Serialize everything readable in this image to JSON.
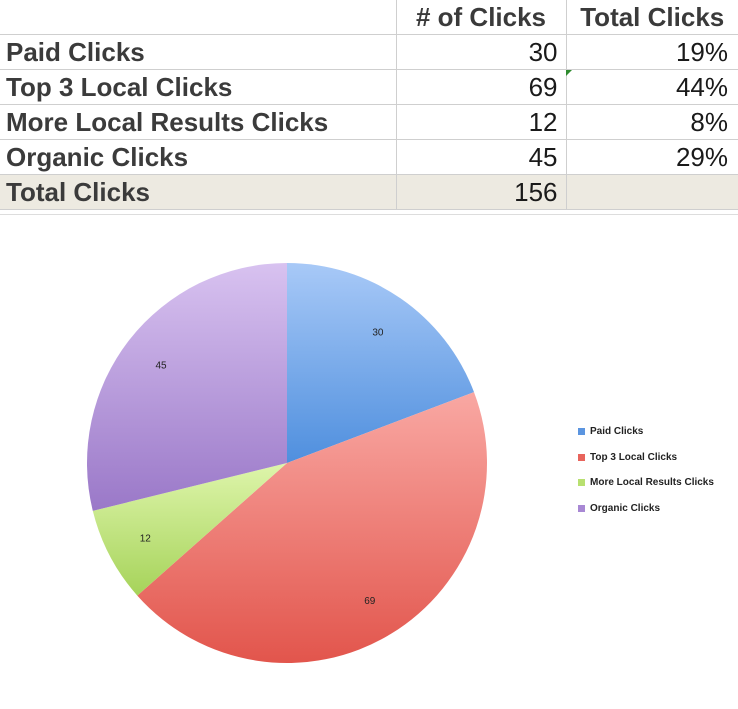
{
  "table": {
    "headers": [
      "",
      "# of Clicks",
      "Total Clicks"
    ],
    "rows": [
      {
        "label": "Paid Clicks",
        "count": "30",
        "pct": "19%"
      },
      {
        "label": "Top 3 Local Clicks",
        "count": "69",
        "pct": "44%"
      },
      {
        "label": "More Local Results Clicks",
        "count": "12",
        "pct": "8%"
      },
      {
        "label": "Organic Clicks",
        "count": "45",
        "pct": "29%"
      }
    ],
    "total": {
      "label": "Total Clicks",
      "count": "156",
      "pct": ""
    }
  },
  "chart_data": {
    "type": "pie",
    "title": "",
    "legend_position": "right",
    "categories": [
      "Paid Clicks",
      "Top 3 Local Clicks",
      "More Local Results Clicks",
      "Organic Clicks"
    ],
    "values": [
      30,
      69,
      12,
      45
    ],
    "data_labels": [
      "30",
      "69",
      "12",
      "45"
    ],
    "colors": [
      {
        "light": "#a8c9f7",
        "dark": "#4f8fde",
        "legend": "#5b95e0"
      },
      {
        "light": "#f9a8a3",
        "dark": "#e2554c",
        "legend": "#e8645c"
      },
      {
        "light": "#def5ab",
        "dark": "#a6d35a",
        "legend": "#b8e070"
      },
      {
        "light": "#d8c2f0",
        "dark": "#9a78c8",
        "legend": "#a888d4"
      }
    ]
  }
}
